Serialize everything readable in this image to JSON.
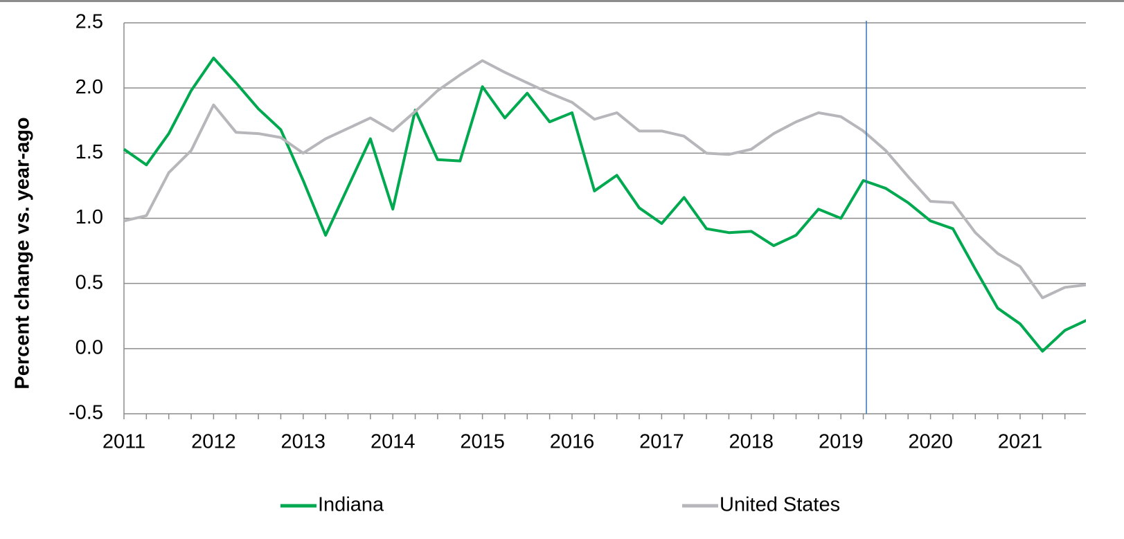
{
  "chart_data": {
    "type": "line",
    "y_label": "Percent change vs. year-ago",
    "categories": [
      "2011",
      null,
      null,
      null,
      "2012",
      null,
      null,
      null,
      "2013",
      null,
      null,
      null,
      "2014",
      null,
      null,
      null,
      "2015",
      null,
      null,
      null,
      "2016",
      null,
      null,
      null,
      "2017",
      null,
      null,
      null,
      "2018",
      null,
      null,
      null,
      "2019",
      null,
      null,
      null,
      "2020",
      null,
      null,
      null,
      "2021",
      null,
      null,
      null
    ],
    "series": [
      {
        "name": "Indiana",
        "color": "#00a94f",
        "values": [
          1.53,
          1.41,
          1.65,
          1.98,
          2.23,
          2.04,
          1.84,
          1.68,
          1.29,
          0.87,
          1.24,
          1.61,
          1.07,
          1.83,
          1.45,
          1.44,
          2.01,
          1.77,
          1.96,
          1.74,
          1.81,
          1.21,
          1.33,
          1.08,
          0.96,
          1.16,
          0.92,
          0.89,
          0.9,
          0.79,
          0.87,
          1.07,
          1.0,
          1.29,
          1.23,
          1.12,
          0.98,
          0.92,
          0.61,
          0.31,
          0.19,
          -0.02,
          0.14,
          0.22
        ]
      },
      {
        "name": "United States",
        "color": "#b7b7bb",
        "values": [
          0.98,
          1.02,
          1.35,
          1.52,
          1.87,
          1.66,
          1.65,
          1.62,
          1.5,
          1.61,
          1.69,
          1.77,
          1.67,
          1.82,
          1.98,
          2.1,
          2.21,
          2.12,
          2.04,
          1.96,
          1.89,
          1.76,
          1.81,
          1.67,
          1.67,
          1.63,
          1.5,
          1.49,
          1.53,
          1.65,
          1.74,
          1.81,
          1.78,
          1.67,
          1.52,
          1.32,
          1.13,
          1.12,
          0.89,
          0.73,
          0.63,
          0.39,
          0.47,
          0.49
        ]
      }
    ],
    "ylim": [
      -0.5,
      2.5
    ],
    "yticks": [
      {
        "value": -0.5,
        "label": "-0.5"
      },
      {
        "value": 0,
        "label": "0.0"
      },
      {
        "value": 0.5,
        "label": "0.5"
      },
      {
        "value": 1,
        "label": "1.0"
      },
      {
        "value": 1.5,
        "label": "1.5"
      },
      {
        "value": 2,
        "label": "2.0"
      },
      {
        "value": 2.5,
        "label": "2.5"
      }
    ],
    "grid": true,
    "legend": "bottom"
  }
}
